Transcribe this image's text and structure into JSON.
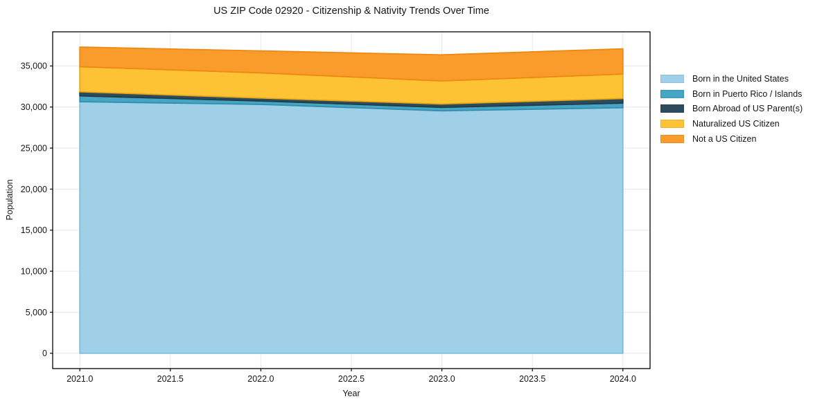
{
  "title": "US ZIP Code 02920 - Citizenship & Nativity Trends Over Time",
  "chart_data": {
    "type": "area",
    "stacked": true,
    "title": "US ZIP Code 02920 - Citizenship & Nativity Trends Over Time",
    "xlabel": "Year",
    "ylabel": "Population",
    "x": [
      2021,
      2022,
      2023,
      2024
    ],
    "series": [
      {
        "name": "Born in the United States",
        "color": "#A0CFE8",
        "edge": "#7EBEDD",
        "values": [
          30650,
          30320,
          29540,
          29920
        ]
      },
      {
        "name": "Born in Puerto Rico / Islands",
        "color": "#45A5C2",
        "edge": "#2F90AE",
        "values": [
          710,
          410,
          420,
          560
        ]
      },
      {
        "name": "Born Abroad of US Parent(s)",
        "color": "#2C4C5D",
        "edge": "#203B4A",
        "values": [
          500,
          360,
          410,
          560
        ]
      },
      {
        "name": "Naturalized US Citizen",
        "color": "#FDC334",
        "edge": "#E7A714",
        "values": [
          3050,
          3070,
          2810,
          2980
        ]
      },
      {
        "name": "Not a US Citizen",
        "color": "#F99C2C",
        "edge": "#EE8812",
        "values": [
          2400,
          2680,
          3180,
          3070
        ]
      }
    ],
    "x_ticks": {
      "values": [
        2021.0,
        2021.5,
        2022.0,
        2022.5,
        2023.0,
        2023.5,
        2024.0
      ],
      "labels": [
        "2021.0",
        "2021.5",
        "2022.0",
        "2022.5",
        "2023.0",
        "2023.5",
        "2024.0"
      ]
    },
    "y_ticks": {
      "values": [
        0,
        5000,
        10000,
        15000,
        20000,
        25000,
        30000,
        35000
      ],
      "labels": [
        "0",
        "5,000",
        "10,000",
        "15,000",
        "20,000",
        "25,000",
        "30,000",
        "35,000"
      ]
    },
    "xlim": [
      2020.85,
      2024.15
    ],
    "ylim": [
      -1865,
      39165
    ],
    "grid": true,
    "grid_color": "#e7e7e7",
    "legend_position": "right-outside"
  }
}
